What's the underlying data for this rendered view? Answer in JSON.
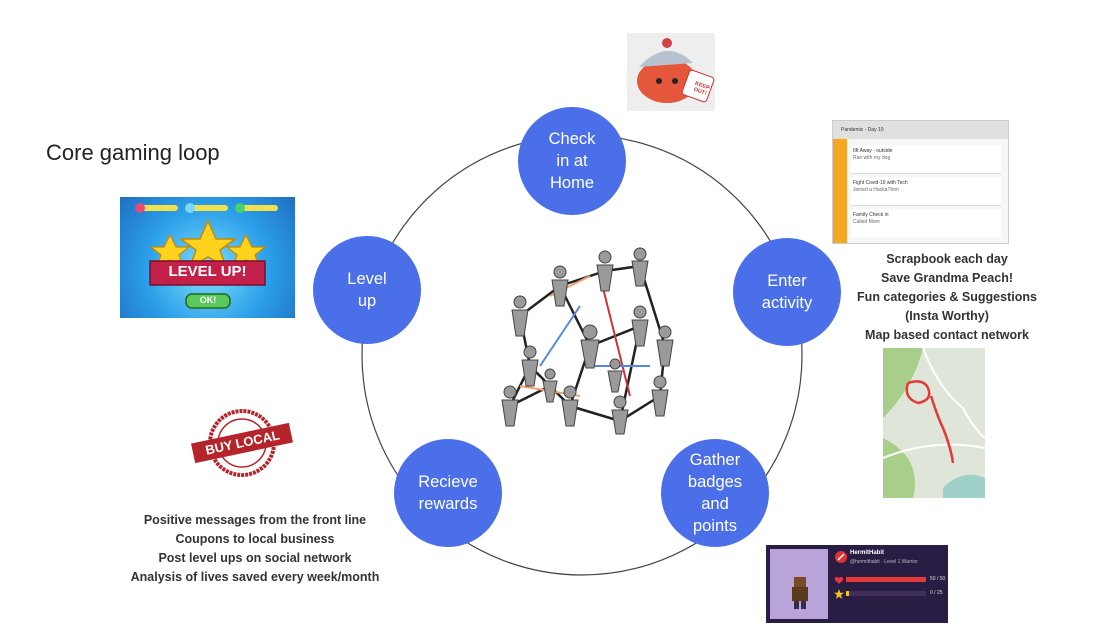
{
  "title": "Core gaming loop",
  "nodes": {
    "check_in": "Check\nin at\nHome",
    "enter_activity": "Enter\nactivity",
    "gather": "Gather\nbadges\nand\npoints",
    "rewards": "Recieve\nrewards",
    "level_up": "Level\nup"
  },
  "activity_notes": [
    "Scrapbook each day",
    "Save Grandma Peach!",
    "Fun categories & Suggestions",
    "(Insta Worthy)",
    "Map based contact network"
  ],
  "reward_notes": [
    "Positive messages from the front line",
    "Coupons to local business",
    "Post level ups on social network",
    "Analysis of lives saved every week/month"
  ],
  "scrapbook_card": {
    "header": "Pandemic - Day 10",
    "entries": [
      {
        "title": "6ft Away - outside",
        "sub": "Ran with my dog"
      },
      {
        "title": "Fight Covid-19 with Tech",
        "sub": "Joined a HackaThon"
      },
      {
        "title": "Family Check in",
        "sub": "Called Mom"
      }
    ]
  },
  "level_up_art": {
    "banner": "LEVEL UP!",
    "button": "OK!"
  },
  "buy_local_stamp": {
    "text": "BUY LOCAL"
  },
  "stay_home_sticker": {
    "text": "KEEP OUT!"
  },
  "profile_card": {
    "name": "HermitHabit",
    "handle": "@hermithabit · Level 1 Warrior",
    "hp": "50 / 50",
    "xp": "0 / 25"
  },
  "colors": {
    "node": "#4a6fe8",
    "card_accent": "#f5a623",
    "map_route": "#e53935"
  }
}
